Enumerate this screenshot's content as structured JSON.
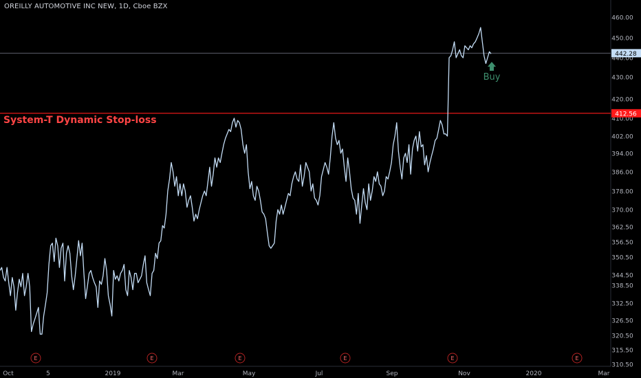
{
  "header": {
    "title": "OREILLY AUTOMOTIVE INC NEW, 1D, Cboe BZX"
  },
  "colors": {
    "background": "#000000",
    "price_line": "#c4ddf6",
    "stop_line": "#ff1a1a",
    "axis_text": "#b2b5be",
    "earnings": "#b22222",
    "buy": "#3e8f6e"
  },
  "annotations": {
    "stop_loss_label": "System-T Dynamic Stop-loss",
    "buy_label": "Buy"
  },
  "chart_data": {
    "type": "line",
    "title": "OREILLY AUTOMOTIVE INC NEW, 1D, Cboe BZX",
    "y_ticks": [
      310.5,
      315.5,
      320.5,
      326.5,
      332.5,
      338.5,
      344.5,
      350.5,
      356.5,
      362.5,
      370.0,
      378.0,
      386.0,
      394.0,
      402.0,
      410.0,
      420.0,
      430.0,
      440.0,
      450.0,
      460.0
    ],
    "x_ticks": [
      "Oct",
      "5",
      "2019",
      "Mar",
      "May",
      "Jul",
      "Sep",
      "Nov",
      "2020",
      "Mar"
    ],
    "ylim": [
      310.5,
      460.0
    ],
    "horizontal_lines": [
      {
        "name": "System-T Dynamic Stop-loss",
        "value": 412.56,
        "label": "412.56"
      },
      {
        "name": "last price",
        "value": 442.28,
        "label": "442.28"
      }
    ],
    "earnings_markers": [
      "E",
      "E",
      "E",
      "E",
      "E",
      "E"
    ],
    "series": [
      {
        "values": [
          346,
          347,
          343,
          341,
          347,
          340,
          335,
          343,
          338,
          330,
          336,
          342,
          338,
          345,
          335,
          338,
          345,
          338,
          322,
          325,
          327,
          329,
          331,
          321,
          321,
          328,
          332,
          336,
          348,
          355,
          356,
          349,
          358,
          355,
          347,
          354,
          356,
          341,
          352,
          355,
          352,
          344,
          337,
          344,
          350,
          357,
          351,
          356,
          345,
          334,
          338,
          345,
          346,
          343,
          340,
          338,
          331,
          341,
          339,
          344,
          350,
          346,
          335,
          332,
          328,
          346,
          342,
          344,
          341,
          345,
          346,
          348,
          337,
          335,
          346,
          343,
          337,
          345,
          345,
          340,
          342,
          344,
          348,
          351,
          340,
          337,
          335,
          345,
          346,
          352,
          350,
          356,
          357,
          363,
          362,
          368,
          378,
          383,
          390,
          386,
          380,
          384,
          376,
          381,
          376,
          381,
          378,
          371,
          374,
          376,
          371,
          365,
          368,
          366,
          370,
          373,
          376,
          378,
          376,
          382,
          388,
          380,
          385,
          392,
          388,
          392,
          390,
          394,
          398,
          401,
          403,
          405,
          404,
          408,
          410,
          406,
          409,
          408,
          405,
          398,
          394,
          398,
          386,
          379,
          382,
          376,
          374,
          380,
          378,
          374,
          369,
          368,
          366,
          360,
          355,
          354,
          355,
          356,
          365,
          370,
          368,
          372,
          368,
          371,
          374,
          377,
          376,
          381,
          384,
          386,
          383,
          382,
          389,
          380,
          384,
          390,
          388,
          386,
          378,
          381,
          375,
          374,
          372,
          376,
          384,
          387,
          390,
          388,
          385,
          392,
          402,
          408,
          401,
          398,
          400,
          394,
          396,
          388,
          382,
          392,
          386,
          379,
          375,
          374,
          368,
          377,
          364,
          372,
          379,
          373,
          370,
          381,
          374,
          378,
          384,
          382,
          386,
          381,
          380,
          376,
          378,
          384,
          383,
          386,
          390,
          398,
          402,
          408,
          395,
          388,
          383,
          392,
          394,
          390,
          398,
          385,
          396,
          400,
          402,
          395,
          404,
          397,
          398,
          389,
          393,
          386,
          390,
          393,
          396,
          400,
          401,
          405,
          409,
          407,
          403,
          403,
          402,
          440,
          441,
          444,
          448,
          440,
          442,
          444,
          441,
          440,
          446,
          445,
          444,
          446,
          445,
          447,
          448,
          450,
          452,
          455,
          448,
          441,
          437,
          440,
          443,
          442
        ]
      }
    ]
  }
}
